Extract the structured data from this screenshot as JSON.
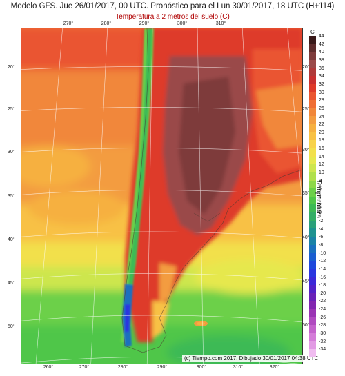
{
  "header": {
    "title": "Modelo GFS. Jue 26/01/2017, 00 UTC. Pronóstico para el Lun 30/01/2017, 18 UTC (H+114)",
    "subtitle": "Temperatura a 2 metros del suelo (C)"
  },
  "map": {
    "top_longitudes": [
      "270°",
      "280°",
      "290°",
      "300°",
      "310°"
    ],
    "bottom_longitudes": [
      "260°",
      "270°",
      "280°",
      "290°",
      "300°",
      "310°",
      "320°"
    ],
    "left_latitudes": [
      "20°",
      "25°",
      "30°",
      "35°",
      "40°",
      "45°",
      "50°"
    ],
    "right_latitudes": [
      "20°",
      "25°",
      "30°",
      "35°",
      "40°",
      "45°",
      "50°"
    ],
    "credit": "(c) Tiempo.com 2017. Dibujado 30/01/2017 04:38 UTC"
  },
  "colorbar": {
    "unit": "C",
    "title": "Temperatura",
    "labels": [
      "44",
      "42",
      "40",
      "38",
      "36",
      "34",
      "32",
      "30",
      "28",
      "26",
      "24",
      "22",
      "20",
      "18",
      "16",
      "14",
      "12",
      "10",
      "8",
      "6",
      "4",
      "2",
      "0",
      "-2",
      "-4",
      "-6",
      "-8",
      "-10",
      "-12",
      "-14",
      "-16",
      "-18",
      "-20",
      "-22",
      "-24",
      "-26",
      "-28",
      "-30",
      "-32",
      "-34"
    ],
    "colors": [
      "#3a1a1a",
      "#5e2c2c",
      "#7e3b3b",
      "#9a4a4a",
      "#b03a3a",
      "#c83030",
      "#de3a2a",
      "#ea5530",
      "#ef6e34",
      "#f1873a",
      "#f39c40",
      "#f6b040",
      "#f8c144",
      "#f7d24a",
      "#f2e04c",
      "#e6e84e",
      "#cde64e",
      "#b0e04c",
      "#8ed84a",
      "#6cd048",
      "#50c648",
      "#3cba54",
      "#34ae66",
      "#2aa07a",
      "#1e9290",
      "#1a82a6",
      "#1a70be",
      "#1a5ed0",
      "#1e48dc",
      "#2a36e0",
      "#3c28d8",
      "#5222c8",
      "#6a22b8",
      "#8226b0",
      "#9a34b4",
      "#b04ac0",
      "#c462cc",
      "#d47cd8",
      "#e29ae4",
      "#f0bcf0"
    ]
  }
}
